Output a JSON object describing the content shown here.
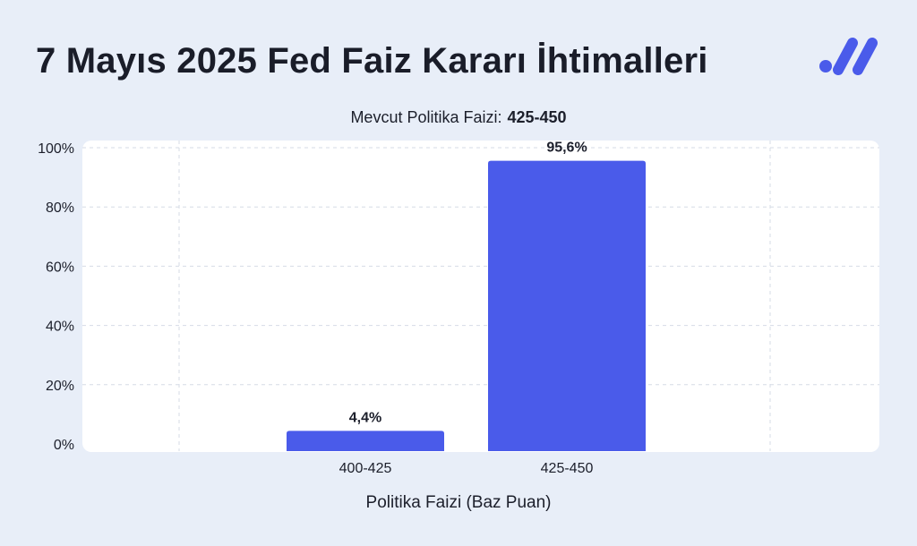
{
  "title": "7 Mayıs 2025 Fed Faiz Kararı İhtimalleri",
  "logo_icon": "brand-logo-icon",
  "colors": {
    "background": "#e8eef8",
    "bar": "#4a5bea",
    "grid": "#d6dbe6",
    "text": "#1c1f2b"
  },
  "chart_data": {
    "type": "bar",
    "subtitle_label": "Mevcut Politika Faizi:",
    "subtitle_value": "425-450",
    "categories": [
      "400-425",
      "425-450"
    ],
    "values": [
      4.4,
      95.6
    ],
    "value_labels": [
      "4,4%",
      "95,6%"
    ],
    "yticks": [
      "0%",
      "20%",
      "40%",
      "60%",
      "80%",
      "100%"
    ],
    "xlabel": "Politika Faizi (Baz Puan)",
    "ylim": [
      0,
      100
    ],
    "grid": true
  }
}
